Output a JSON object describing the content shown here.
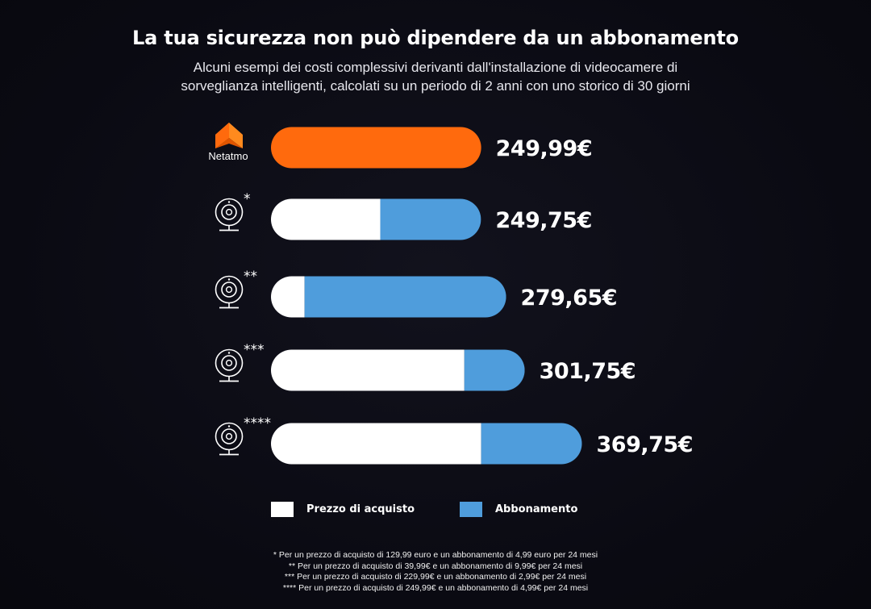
{
  "title": "La tua sicurezza non può dipendere da un abbonamento",
  "subtitle_line1": "Alcuni esempi dei costi complessivi derivanti dall'installazione di videocamere di",
  "subtitle_line2": "sorveglianza intelligenti, calcolati su un periodo di 2 anni con uno storico di 30 giorni",
  "colors": {
    "netatmo": "#ff6a0d",
    "purchase": "#ffffff",
    "subscription": "#4f9ddc",
    "background": "#0b0b14"
  },
  "chart_data": {
    "type": "bar",
    "orientation": "horizontal",
    "stacked": true,
    "unit": "€",
    "categories": [
      "Netatmo",
      "*",
      "**",
      "***",
      "****"
    ],
    "rows": [
      {
        "label": "Netatmo",
        "icon": "netatmo-logo",
        "total": 249.99,
        "value_label": "249,99€",
        "single_color": true
      },
      {
        "label": "*",
        "icon": "camera-icon",
        "purchase": 129.99,
        "subscription": 119.76,
        "total": 249.75,
        "value_label": "249,75€"
      },
      {
        "label": "**",
        "icon": "camera-icon",
        "purchase": 39.99,
        "subscription": 239.76,
        "total": 279.65,
        "value_label": "279,65€"
      },
      {
        "label": "***",
        "icon": "camera-icon",
        "purchase": 229.99,
        "subscription": 71.76,
        "total": 301.75,
        "value_label": "301,75€"
      },
      {
        "label": "****",
        "icon": "camera-icon",
        "purchase": 249.99,
        "subscription": 119.76,
        "total": 369.75,
        "value_label": "369,75€"
      }
    ],
    "series": [
      {
        "name": "Prezzo di acquisto",
        "color": "#ffffff"
      },
      {
        "name": "Abbonamento",
        "color": "#4f9ddc"
      }
    ],
    "legend_position": "bottom",
    "grid": false
  },
  "legend": {
    "purchase": "Prezzo di acquisto",
    "subscription": "Abbonamento"
  },
  "notes": [
    "* Per un prezzo di acquisto di 129,99 euro e un abbonamento di 4,99 euro per 24 mesi",
    "** Per un prezzo di acquisto di 39,99€ e un abbonamento di 9,99€ per 24 mesi",
    "*** Per un prezzo di acquisto di 229,99€ e un abbonamento di 2,99€ per 24 mesi",
    "**** Per un prezzo di acquisto di 249,99€ e un abbonamento di 4,99€ per 24 mesi"
  ]
}
